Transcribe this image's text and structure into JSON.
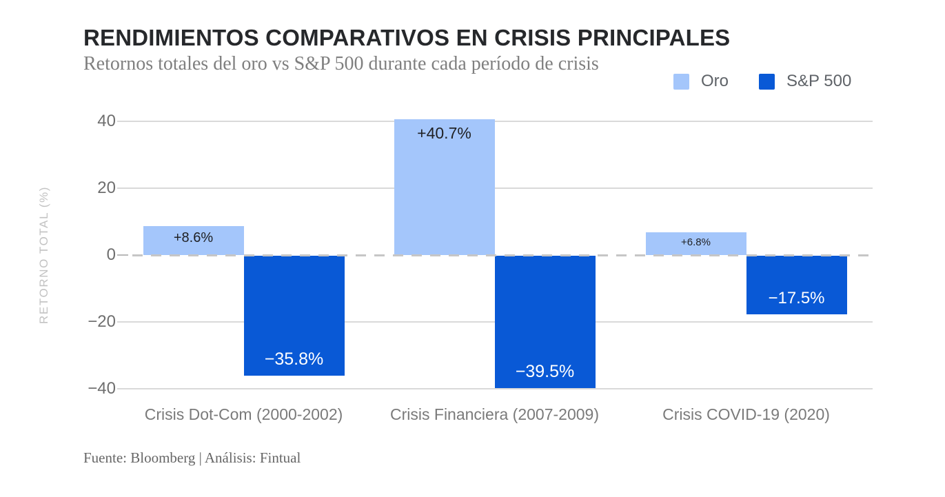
{
  "chart_data": {
    "type": "bar",
    "title": "RENDIMIENTOS COMPARATIVOS EN CRISIS PRINCIPALES",
    "subtitle": "Retornos totales del oro vs S&P 500 durante cada período de crisis",
    "source": "Fuente: Bloomberg | Análisis: Fintual",
    "categories": [
      "Crisis Dot-Com (2000-2002)",
      "Crisis Financiera (2007-2009)",
      "Crisis COVID-19 (2020)"
    ],
    "series": [
      {
        "name": "Oro",
        "color": "#a4c6fb",
        "values": [
          8.6,
          40.7,
          6.8
        ],
        "labels": [
          "+8.6%",
          "+40.7%",
          "+6.8%"
        ],
        "label_color": "#202124"
      },
      {
        "name": "S&P 500",
        "color": "#0959d6",
        "values": [
          -35.8,
          -39.5,
          -17.5
        ],
        "labels": [
          "−35.8%",
          "−39.5%",
          "−17.5%"
        ],
        "label_color": "#ffffff"
      }
    ],
    "ylabel": "RETORNO TOTAL (%)",
    "yticks": [
      40,
      20,
      0,
      -20,
      -40
    ],
    "ylim": [
      -45,
      42
    ],
    "grid": true,
    "zero_line": "dashed",
    "legend_position": "top-right"
  }
}
